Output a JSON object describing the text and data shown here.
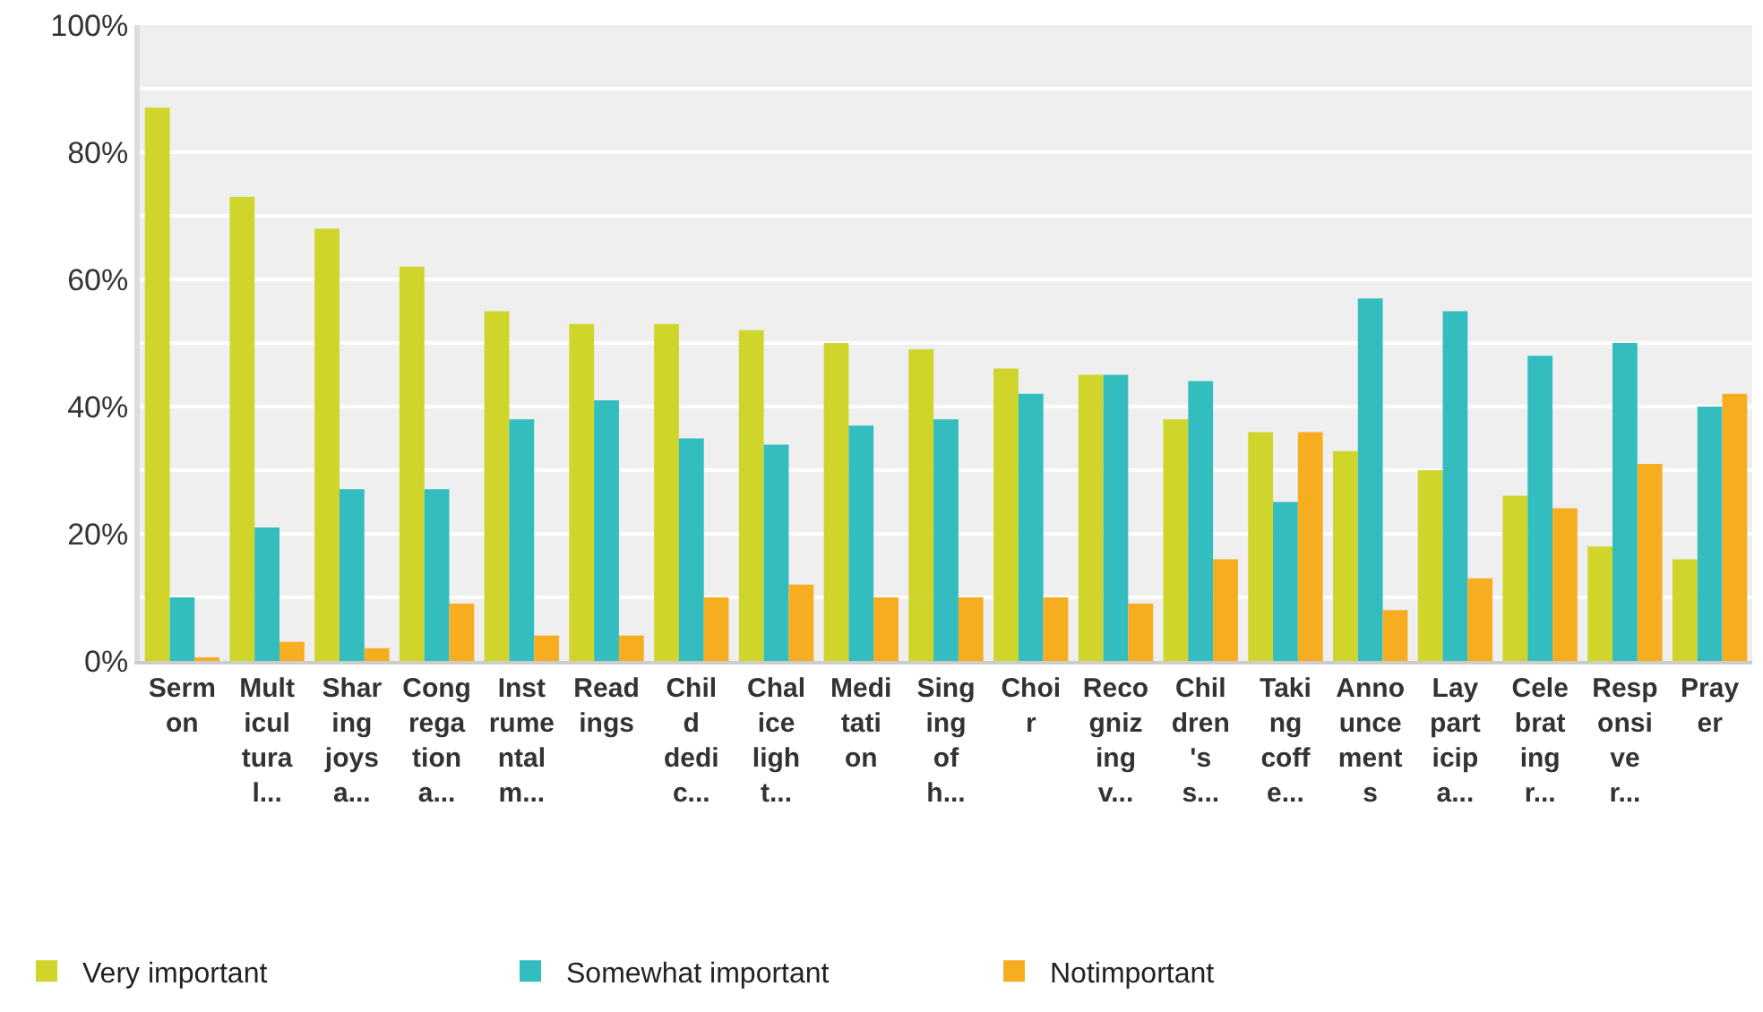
{
  "chart_data": {
    "type": "bar",
    "categories": [
      "Serm\non",
      "Mult\nicul\ntura\nl...",
      "Shar\ning\njoys\na...",
      "Cong\nrega\ntion\na...",
      "Inst\nrume\nntal\nm...",
      "Read\nings",
      "Chil\nd\ndedi\nc...",
      "Chal\nice\nligh\nt...",
      "Medi\ntati\non",
      "Sing\ning\nof\nh...",
      "Choi\nr",
      "Reco\ngniz\ning\nv...",
      "Chil\ndren\n's\ns...",
      "Taki\nng\ncoff\ne...",
      "Anno\nunce\nment\ns",
      "Lay\npart\nicip\na...",
      "Cele\nbrat\ning\nr...",
      "Resp\nonsi\nve\nr...",
      "Pray\ner"
    ],
    "series": [
      {
        "name": "Very important",
        "color": "#cfd52a",
        "values": [
          87,
          73,
          68,
          62,
          55,
          53,
          53,
          52,
          50,
          49,
          46,
          45,
          38,
          36,
          33,
          30,
          26,
          18,
          16
        ]
      },
      {
        "name": "Somewhat important",
        "color": "#33bdbe",
        "values": [
          10,
          21,
          27,
          27,
          38,
          41,
          35,
          34,
          37,
          38,
          42,
          45,
          44,
          25,
          57,
          55,
          48,
          50,
          40
        ]
      },
      {
        "name": "Notimportant",
        "color": "#f6ae20",
        "values": [
          0.5,
          3,
          2,
          9,
          4,
          4,
          10,
          12,
          10,
          10,
          10,
          9,
          16,
          36,
          8,
          13,
          24,
          31,
          42
        ]
      }
    ],
    "ylim": [
      0,
      100
    ],
    "yticks": [
      {
        "value": 0,
        "label": "0%"
      },
      {
        "value": 10,
        "label": null
      },
      {
        "value": 20,
        "label": "20%"
      },
      {
        "value": 30,
        "label": null
      },
      {
        "value": 40,
        "label": "40%"
      },
      {
        "value": 50,
        "label": null
      },
      {
        "value": 60,
        "label": "60%"
      },
      {
        "value": 70,
        "label": null
      },
      {
        "value": 80,
        "label": "80%"
      },
      {
        "value": 90,
        "label": null
      },
      {
        "value": 100,
        "label": "100%"
      }
    ],
    "grid": "y",
    "legend": "bottom left"
  }
}
